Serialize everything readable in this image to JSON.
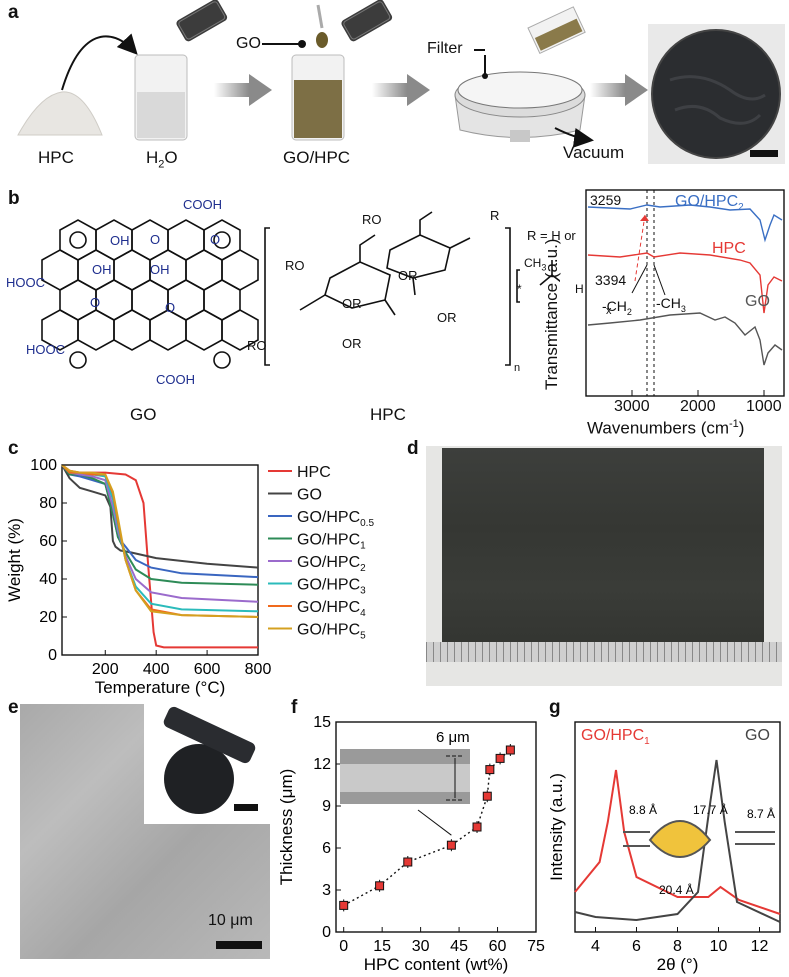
{
  "panel_labels": {
    "a": "a",
    "b": "b",
    "c": "c",
    "d": "d",
    "e": "e",
    "f": "f",
    "g": "g"
  },
  "panel_a": {
    "hpc": "HPC",
    "h2o_main": "H",
    "h2o_sub": "2",
    "h2o_end": "O",
    "go": "GO",
    "go_hpc": "GO/HPC",
    "filter": "Filter",
    "vacuum": "Vacuum"
  },
  "panel_b": {
    "go_caption": "GO",
    "hpc_caption": "HPC",
    "cooh": "COOH",
    "hooc": "HOOC",
    "oh": "OH",
    "o": "O",
    "ro": "RO",
    "or": "OR",
    "r": "R",
    "n": "n",
    "x": "x",
    "r_def": "R = H or",
    "ch3": "CH",
    "three": "3",
    "h": "H",
    "star": "*",
    "ftir": {
      "ylabel": "Transmittance (a.u.)",
      "xlabel": "Wavenumbers (cm",
      "xlabel_sup": "-1",
      "xlabel_end": ")",
      "xticks": [
        "3000",
        "2000",
        "1000"
      ],
      "series": [
        {
          "name": "GO/HPC",
          "sub": "2",
          "color": "#3a6fc4"
        },
        {
          "name": "HPC",
          "sub": "",
          "color": "#e53935"
        },
        {
          "name": "GO",
          "sub": "",
          "color": "#555555"
        }
      ],
      "annotations": {
        "a1": "3259",
        "a2": "3394",
        "ch2": "-CH",
        "ch2_sub": "2",
        "ch3": "-CH",
        "ch3_sub": "3"
      }
    }
  },
  "chart_data": [
    {
      "type": "line",
      "title": "",
      "xlabel": "Temperature (°C)",
      "ylabel": "Weight (%)",
      "xlim": [
        30,
        800
      ],
      "ylim": [
        0,
        100
      ],
      "xticks": [
        200,
        400,
        600,
        800
      ],
      "yticks": [
        0,
        20,
        40,
        60,
        80,
        100
      ],
      "legend": "right",
      "series": [
        {
          "name": "HPC",
          "sub": "",
          "color": "#e53935",
          "x": [
            30,
            60,
            100,
            200,
            280,
            320,
            350,
            370,
            390,
            400,
            430,
            500,
            800
          ],
          "y": [
            100,
            97,
            96,
            96,
            95,
            92,
            80,
            45,
            12,
            5,
            4,
            4,
            4
          ]
        },
        {
          "name": "GO",
          "sub": "",
          "color": "#444444",
          "x": [
            30,
            60,
            100,
            150,
            200,
            220,
            230,
            240,
            260,
            300,
            400,
            600,
            800
          ],
          "y": [
            100,
            93,
            88,
            86,
            84,
            78,
            60,
            57,
            55,
            54,
            51,
            48,
            46
          ]
        },
        {
          "name": "GO/HPC",
          "sub": "0.5",
          "color": "#3a66c0",
          "x": [
            30,
            60,
            100,
            150,
            200,
            230,
            250,
            280,
            320,
            380,
            500,
            800
          ],
          "y": [
            100,
            95,
            94,
            92,
            90,
            75,
            62,
            57,
            50,
            46,
            43,
            41
          ]
        },
        {
          "name": "GO/HPC",
          "sub": "1",
          "color": "#2e8b57",
          "x": [
            30,
            60,
            100,
            150,
            200,
            230,
            250,
            280,
            320,
            380,
            500,
            800
          ],
          "y": [
            100,
            95,
            95,
            93,
            90,
            74,
            62,
            54,
            45,
            40,
            38,
            37
          ]
        },
        {
          "name": "GO/HPC",
          "sub": "2",
          "color": "#9b6bcc",
          "x": [
            30,
            60,
            100,
            150,
            200,
            230,
            250,
            280,
            320,
            380,
            500,
            800
          ],
          "y": [
            100,
            96,
            95,
            94,
            92,
            78,
            65,
            52,
            40,
            33,
            30,
            28
          ]
        },
        {
          "name": "GO/HPC",
          "sub": "3",
          "color": "#2bbbbb",
          "x": [
            30,
            60,
            100,
            150,
            200,
            230,
            250,
            280,
            320,
            380,
            500,
            800
          ],
          "y": [
            100,
            96,
            96,
            95,
            94,
            82,
            68,
            50,
            36,
            27,
            24,
            23
          ]
        },
        {
          "name": "GO/HPC",
          "sub": "4",
          "color": "#f06a1d",
          "x": [
            30,
            60,
            100,
            150,
            200,
            230,
            250,
            280,
            320,
            380,
            500,
            800
          ],
          "y": [
            100,
            96,
            96,
            95,
            95,
            85,
            70,
            50,
            34,
            24,
            21,
            20
          ]
        },
        {
          "name": "GO/HPC",
          "sub": "5",
          "color": "#d4a020",
          "x": [
            30,
            60,
            100,
            150,
            200,
            230,
            250,
            280,
            320,
            380,
            500,
            800
          ],
          "y": [
            100,
            97,
            96,
            96,
            95,
            86,
            72,
            50,
            34,
            23,
            21,
            20
          ]
        }
      ]
    },
    {
      "type": "scatter",
      "title": "",
      "xlabel": "HPC content (wt%)",
      "ylabel": "Thickness (μm)",
      "xlim": [
        -3,
        75
      ],
      "ylim": [
        0,
        15
      ],
      "xticks": [
        0,
        15,
        30,
        45,
        60,
        75
      ],
      "yticks": [
        0,
        3,
        6,
        9,
        12,
        15
      ],
      "x": [
        0,
        14,
        25,
        42,
        52,
        56,
        57,
        61,
        65
      ],
      "y": [
        1.9,
        3.3,
        5.0,
        6.2,
        7.5,
        9.7,
        11.6,
        12.4,
        13.0
      ],
      "inset_label": "6 μm"
    },
    {
      "type": "line",
      "title": "",
      "xlabel": "2θ (°)",
      "ylabel": "Intensity (a.u.)",
      "xlim": [
        3,
        13
      ],
      "xticks": [
        4,
        6,
        8,
        10,
        12
      ],
      "series": [
        {
          "name": "GO/HPC",
          "sub": "1",
          "color": "#e53935"
        },
        {
          "name": "GO",
          "sub": "",
          "color": "#444444"
        }
      ],
      "annotations": [
        "8.8 Å",
        "17.7 Å",
        "8.7 Å",
        "20.4 Å"
      ]
    }
  ],
  "panel_e": {
    "scale": "10 μm"
  }
}
